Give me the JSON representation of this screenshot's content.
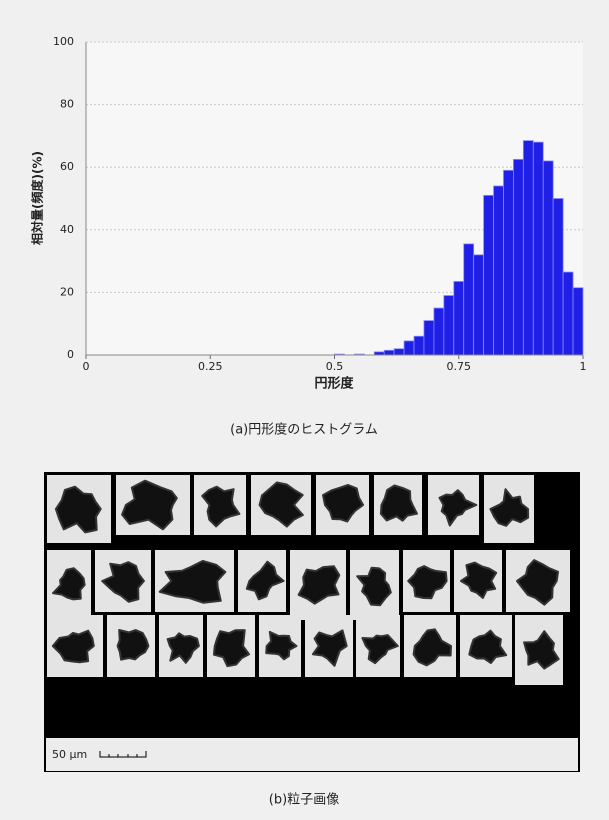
{
  "chart_data": {
    "type": "histogram",
    "xlabel": "円形度",
    "ylabel": "相対量(頻度)(%)",
    "bins": [
      0.5,
      0.52,
      0.54,
      0.56,
      0.58,
      0.6,
      0.62,
      0.64,
      0.66,
      0.68,
      0.7,
      0.72,
      0.74,
      0.76,
      0.78,
      0.8,
      0.82,
      0.84,
      0.86,
      0.88,
      0.9,
      0.92,
      0.94,
      0.96,
      0.98,
      1
    ],
    "values": [
      0.3,
      0,
      0.3,
      0,
      1,
      1.5,
      2,
      4.5,
      6,
      11,
      15,
      19,
      23.5,
      35.5,
      32,
      51,
      54,
      59,
      62.5,
      68.5,
      68,
      62,
      50,
      26.5,
      21.5
    ],
    "color": "#1f1fe6",
    "xlim": [
      0,
      1
    ],
    "ylim": [
      0,
      100
    ],
    "xticks": [
      0,
      0.25,
      0.5,
      0.75,
      1
    ],
    "yticks": [
      0,
      20,
      40,
      60,
      80,
      100
    ],
    "grid": true
  },
  "captions": {
    "histogram": "(a)円形度のヒストグラム",
    "image": "(b)粒子画像"
  },
  "particle_image": {
    "scale_label": "50 µm"
  }
}
